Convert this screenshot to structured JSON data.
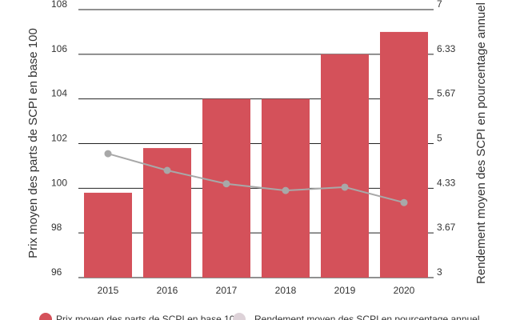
{
  "chart_data": {
    "type": "bar",
    "categories": [
      "2015",
      "2016",
      "2017",
      "2018",
      "2019",
      "2020"
    ],
    "series": [
      {
        "name": "Prix moyen des parts de SCPI en base 100",
        "type": "bar",
        "axis": "left",
        "color": "#d4515a",
        "values": [
          99.8,
          101.8,
          104.0,
          104.0,
          106.0,
          107.0
        ]
      },
      {
        "name": "Rendement moyen des SCPI en pourcentage annuel",
        "type": "line",
        "axis": "right",
        "color": "#a8a8a8",
        "values": [
          4.85,
          4.6,
          4.4,
          4.3,
          4.35,
          4.12
        ]
      }
    ],
    "ylabel": "Prix moyen des parts de SCPI en base 100",
    "ylabel_right": "Rendement moyen des SCPI en pourcentage annuel",
    "ylim": [
      96,
      108
    ],
    "ylim_right": [
      3,
      7
    ],
    "yticks": [
      "96",
      "98",
      "100",
      "102",
      "104",
      "106",
      "108"
    ],
    "yticks_right": [
      "3",
      "3.67",
      "4.33",
      "5",
      "5.67",
      "6.33",
      "7"
    ],
    "grid": true,
    "legend_position": "bottom"
  }
}
